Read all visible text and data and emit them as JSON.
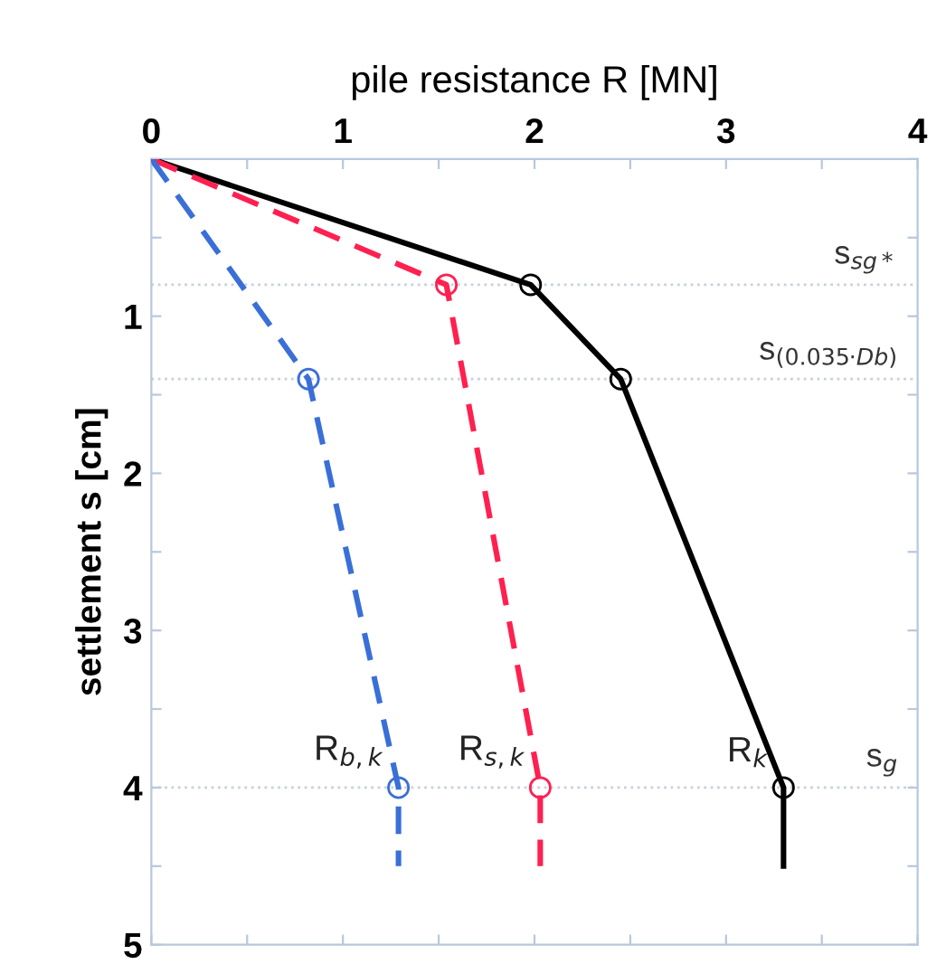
{
  "chart_data": {
    "type": "line",
    "xlabel": "pile resistance R [MN]",
    "ylabel": "settlement s [cm]",
    "xlim": [
      0,
      4
    ],
    "xticks": [
      0,
      {
        "value": 0.5,
        "label": null
      },
      1,
      {
        "value": 1.5,
        "label": null
      },
      2,
      {
        "value": 2.5,
        "label": null
      },
      3,
      {
        "value": 3.5,
        "label": null
      },
      4
    ],
    "ylim": [
      5,
      0
    ],
    "yticks": [
      {
        "value": 0,
        "label": null
      },
      {
        "value": 0.5,
        "label": null
      },
      1,
      {
        "value": 1.5,
        "label": null
      },
      2,
      {
        "value": 2.5,
        "label": null
      },
      3,
      {
        "value": 3.5,
        "label": null
      },
      4,
      {
        "value": 4.5,
        "label": null
      },
      5
    ],
    "marker": "circle",
    "grid": false,
    "legend": false,
    "series": [
      {
        "name": "R$_{k}$",
        "color": "#000000",
        "line_style": "solid",
        "x": [
          0,
          1.98,
          2.45,
          3.3,
          3.3
        ],
        "values": [
          0,
          0.8,
          1.4,
          4.0,
          4.5
        ]
      },
      {
        "name": "R$_{s,k}$",
        "color": "#ff2050",
        "line_style": "dashed",
        "x": [
          0,
          1.54,
          2.03,
          2.03
        ],
        "values": [
          0,
          0.8,
          4.0,
          4.5
        ]
      },
      {
        "name": "R$_{b,k}$",
        "color": "#3a6fd8",
        "line_style": "dashed",
        "x": [
          0,
          0.82,
          1.29,
          1.29
        ],
        "values": [
          0,
          1.4,
          4.0,
          4.5
        ]
      }
    ],
    "ref_lines": [
      {
        "axis": "y",
        "value": 0.8,
        "label": "s$_{sg*}$",
        "color": "#c8d0dc",
        "line_style": "dotted"
      },
      {
        "axis": "y",
        "value": 1.4,
        "label": "s$_{(0.035·Db)}$",
        "color": "#c8d0dc",
        "line_style": "dotted"
      },
      {
        "axis": "y",
        "value": 4.0,
        "label": "s$_{g}$",
        "color": "#c8d0dc",
        "line_style": "dotted"
      }
    ]
  }
}
